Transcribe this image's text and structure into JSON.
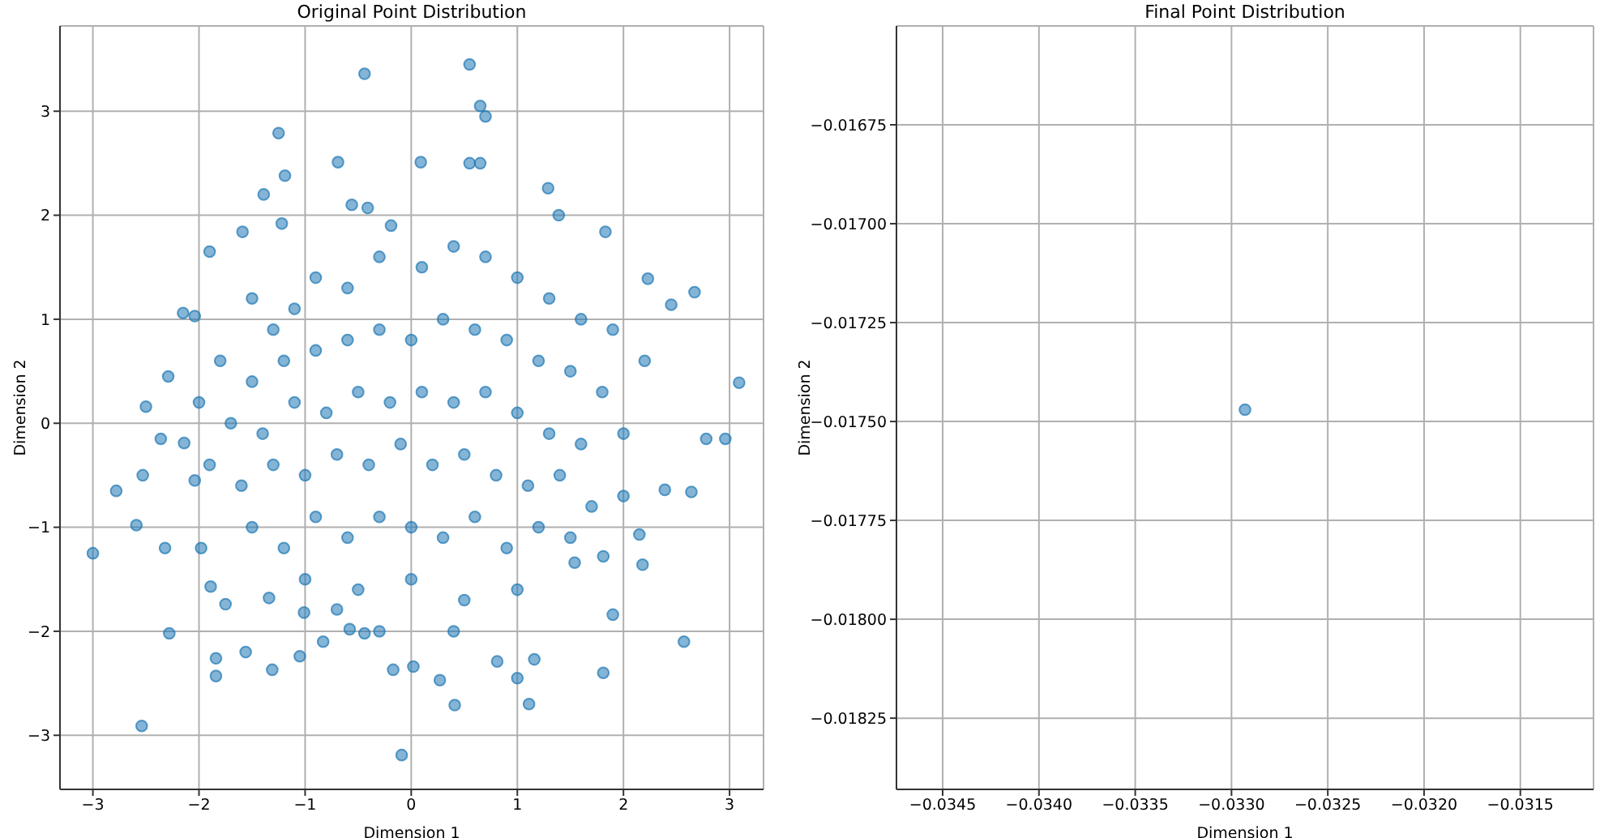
{
  "chart_data": [
    {
      "type": "scatter",
      "title": "Original Point Distribution",
      "xlabel": "Dimension 1",
      "ylabel": "Dimension 2",
      "color": "#1f77b4",
      "marker": "circle",
      "grid": true,
      "xlim": [
        -3.31,
        3.32
      ],
      "ylim": [
        -3.52,
        3.82
      ],
      "xticks": [
        -3,
        -2,
        -1,
        0,
        1,
        2,
        3
      ],
      "yticks": [
        -3,
        -2,
        -1,
        0,
        1,
        2,
        3
      ],
      "x": [
        -3.0,
        -2.54,
        -2.28,
        -1.84,
        -1.84,
        -1.56,
        -1.31,
        -1.05,
        -0.83,
        -0.44,
        -0.17,
        -0.09,
        0.02,
        0.27,
        0.41,
        0.81,
        1.0,
        1.11,
        1.16,
        1.81,
        1.9,
        2.57,
        2.18,
        2.15,
        1.81,
        1.54,
        2.96,
        2.78,
        2.64,
        2.39,
        3.09,
        2.67,
        2.45,
        2.23,
        1.83,
        1.39,
        1.29,
        -2.78,
        -2.53,
        -2.59,
        -2.32,
        -1.98,
        -1.89,
        -1.75,
        -2.04,
        -2.36,
        -2.14,
        -1.34,
        -1.01,
        -0.7,
        -0.58,
        -0.44,
        -1.25,
        -1.19,
        -1.39,
        -0.69,
        -1.59,
        -1.9,
        -2.15,
        -2.04,
        -2.29,
        -2.5,
        -1.22,
        -0.56,
        -0.41,
        -0.19,
        0.09,
        0.55,
        0.65,
        0.7,
        0.55,
        0.65,
        -1.5,
        -1.3,
        -1.1,
        -0.9,
        -0.6,
        -0.3,
        0.1,
        0.4,
        0.7,
        1.0,
        1.3,
        1.6,
        1.9,
        2.2,
        -1.8,
        -1.5,
        -1.2,
        -0.9,
        -0.6,
        -0.3,
        0.0,
        0.3,
        0.6,
        0.9,
        1.2,
        1.5,
        1.8,
        -2.0,
        -1.7,
        -1.4,
        -1.1,
        -0.8,
        -0.5,
        -0.2,
        0.1,
        0.4,
        0.7,
        1.0,
        1.3,
        1.6,
        2.0,
        -1.9,
        -1.6,
        -1.3,
        -1.0,
        -0.7,
        -0.4,
        -0.1,
        0.2,
        0.5,
        0.8,
        1.1,
        1.4,
        1.7,
        2.0,
        -1.5,
        -1.2,
        -0.9,
        -0.6,
        -0.3,
        0.0,
        0.3,
        0.6,
        0.9,
        1.2,
        1.5,
        -1.0,
        -0.5,
        0.0,
        0.5,
        1.0,
        -0.3,
        0.4
      ],
      "values": [
        -1.25,
        -2.91,
        -2.02,
        -2.43,
        -2.26,
        -2.2,
        -2.37,
        -2.24,
        -2.1,
        -2.02,
        -2.37,
        -3.19,
        -2.34,
        -2.47,
        -2.71,
        -2.29,
        -2.45,
        -2.7,
        -2.27,
        -2.4,
        -1.84,
        -2.1,
        -1.36,
        -1.07,
        -1.28,
        -1.34,
        -0.15,
        -0.15,
        -0.66,
        -0.64,
        0.39,
        1.26,
        1.14,
        1.39,
        1.84,
        2.0,
        2.26,
        -0.65,
        -0.5,
        -0.98,
        -1.2,
        -1.2,
        -1.57,
        -1.74,
        -0.55,
        -0.15,
        -0.19,
        -1.68,
        -1.82,
        -1.79,
        -1.98,
        3.36,
        2.79,
        2.38,
        2.2,
        2.51,
        1.84,
        1.65,
        1.06,
        1.03,
        0.45,
        0.16,
        1.92,
        2.1,
        2.07,
        1.9,
        2.51,
        3.45,
        3.05,
        2.95,
        2.5,
        2.5,
        1.2,
        0.9,
        1.1,
        1.4,
        1.3,
        1.6,
        1.5,
        1.7,
        1.6,
        1.4,
        1.2,
        1.0,
        0.9,
        0.6,
        0.6,
        0.4,
        0.6,
        0.7,
        0.8,
        0.9,
        0.8,
        1.0,
        0.9,
        0.8,
        0.6,
        0.5,
        0.3,
        0.2,
        0.0,
        -0.1,
        0.2,
        0.1,
        0.3,
        0.2,
        0.3,
        0.2,
        0.3,
        0.1,
        -0.1,
        -0.2,
        -0.1,
        -0.4,
        -0.6,
        -0.4,
        -0.5,
        -0.3,
        -0.4,
        -0.2,
        -0.4,
        -0.3,
        -0.5,
        -0.6,
        -0.5,
        -0.8,
        -0.7,
        -1.0,
        -1.2,
        -0.9,
        -1.1,
        -0.9,
        -1.0,
        -1.1,
        -0.9,
        -1.2,
        -1.0,
        -1.1,
        -1.5,
        -1.6,
        -1.5,
        -1.7,
        -1.6,
        -2.0,
        -2.0
      ]
    },
    {
      "type": "scatter",
      "title": "Final Point Distribution",
      "xlabel": "Dimension 1",
      "ylabel": "Dimension 2",
      "color": "#1f77b4",
      "marker": "circle",
      "grid": true,
      "xlim": [
        -0.03474,
        -0.03112
      ],
      "ylim": [
        -0.01843,
        -0.0165
      ],
      "xticks": [
        -0.0345,
        {
          "value": -0.034,
          "label": "−0.0340"
        },
        -0.0335,
        {
          "value": -0.033,
          "label": "−0.0330"
        },
        -0.0325,
        {
          "value": -0.032,
          "label": "−0.0320"
        },
        -0.0315
      ],
      "yticks": [
        {
          "value": -0.01825,
          "label": "−0.01825"
        },
        {
          "value": -0.018,
          "label": "−0.01800"
        },
        {
          "value": -0.01775,
          "label": "−0.01775"
        },
        {
          "value": -0.0175,
          "label": "−0.01750"
        },
        {
          "value": -0.01725,
          "label": "−0.01725"
        },
        {
          "value": -0.017,
          "label": "−0.01700"
        },
        {
          "value": -0.01675,
          "label": "−0.01675"
        }
      ],
      "x": [
        -0.03293
      ],
      "values": [
        -0.01747
      ]
    }
  ]
}
